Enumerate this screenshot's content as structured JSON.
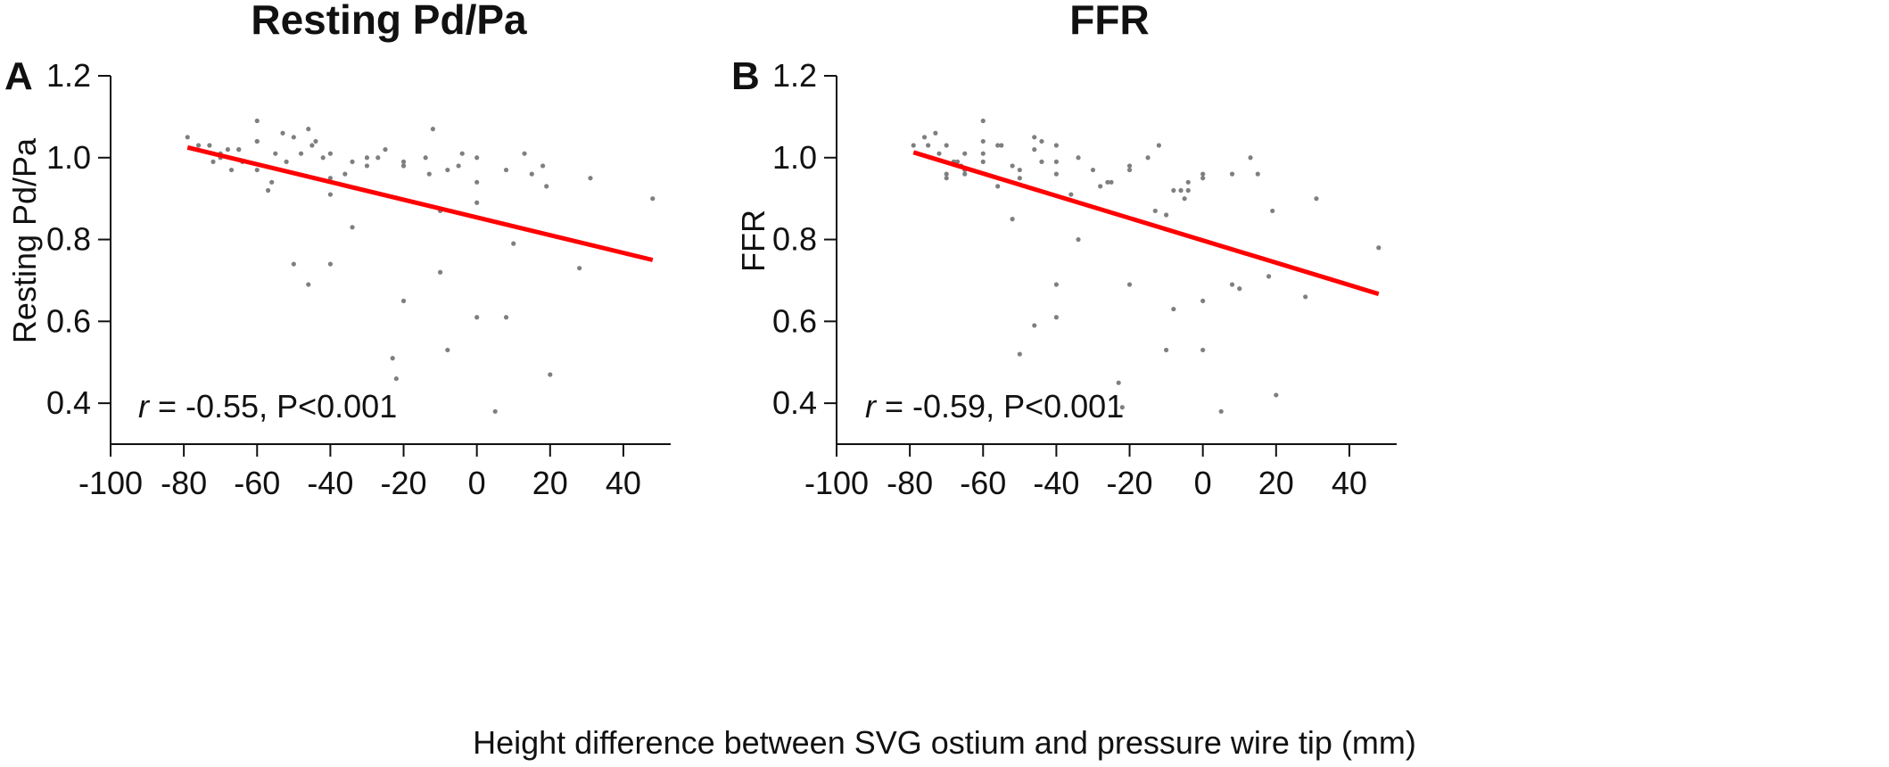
{
  "figure": {
    "shared_xlabel": "Height difference between SVG ostium and pressure wire tip (mm)"
  },
  "chart_data": [
    {
      "type": "scatter",
      "panel_label": "A",
      "title": "Resting Pd/Pa",
      "xlabel": "",
      "ylabel": "Resting Pd/Pa",
      "xlim": [
        -100,
        50
      ],
      "ylim": [
        0.3,
        1.2
      ],
      "xticks": [
        -100,
        -80,
        -60,
        -40,
        -20,
        0,
        20,
        40
      ],
      "xtick_labels": [
        "-100",
        "-80",
        "-60",
        "-40",
        "-20",
        "0",
        "20",
        "40"
      ],
      "yticks": [
        0.4,
        0.6,
        0.8,
        1.0,
        1.2
      ],
      "ytick_labels": [
        "0.4",
        "0.6",
        "0.8",
        "1.0",
        "1.2"
      ],
      "grid": false,
      "point_color": "#7f7f7f",
      "line_color": "#ff0000",
      "annotation": {
        "r_symbol": "r",
        "text": " = -0.55, P<0.001"
      },
      "regression": {
        "x": [
          -79,
          48
        ],
        "y": [
          1.025,
          0.75
        ]
      },
      "points": [
        [
          -79,
          1.05
        ],
        [
          -76,
          1.03
        ],
        [
          -73,
          1.03
        ],
        [
          -72,
          0.99
        ],
        [
          -70,
          1.01
        ],
        [
          -70,
          1.0
        ],
        [
          -68,
          1.02
        ],
        [
          -67,
          0.97
        ],
        [
          -65,
          1.02
        ],
        [
          -65,
          1.02
        ],
        [
          -64,
          0.99
        ],
        [
          -60,
          1.09
        ],
        [
          -60,
          1.04
        ],
        [
          -60,
          0.97
        ],
        [
          -60,
          1.04
        ],
        [
          -57,
          0.92
        ],
        [
          -56,
          0.94
        ],
        [
          -55,
          1.01
        ],
        [
          -53,
          1.06
        ],
        [
          -52,
          0.99
        ],
        [
          -50,
          1.05
        ],
        [
          -50,
          0.74
        ],
        [
          -48,
          1.01
        ],
        [
          -46,
          1.07
        ],
        [
          -46,
          0.69
        ],
        [
          -45,
          1.03
        ],
        [
          -44,
          1.04
        ],
        [
          -42,
          1.0
        ],
        [
          -40,
          1.01
        ],
        [
          -40,
          0.91
        ],
        [
          -40,
          0.95
        ],
        [
          -40,
          0.74
        ],
        [
          -36,
          0.96
        ],
        [
          -34,
          0.99
        ],
        [
          -34,
          0.83
        ],
        [
          -30,
          1.0
        ],
        [
          -30,
          0.98
        ],
        [
          -27,
          1.0
        ],
        [
          -25,
          1.02
        ],
        [
          -23,
          0.51
        ],
        [
          -22,
          0.46
        ],
        [
          -20,
          0.99
        ],
        [
          -20,
          0.98
        ],
        [
          -20,
          0.98
        ],
        [
          -20,
          0.65
        ],
        [
          -14,
          1.0
        ],
        [
          -13,
          0.96
        ],
        [
          -12,
          1.07
        ],
        [
          -10,
          0.87
        ],
        [
          -10,
          0.72
        ],
        [
          -8,
          0.97
        ],
        [
          -8,
          0.53
        ],
        [
          -5,
          0.98
        ],
        [
          -4,
          1.01
        ],
        [
          0,
          1.0
        ],
        [
          0,
          0.94
        ],
        [
          0,
          0.89
        ],
        [
          0,
          0.61
        ],
        [
          5,
          0.38
        ],
        [
          8,
          0.97
        ],
        [
          8,
          0.61
        ],
        [
          10,
          0.79
        ],
        [
          13,
          1.01
        ],
        [
          15,
          0.96
        ],
        [
          18,
          0.98
        ],
        [
          19,
          0.93
        ],
        [
          20,
          0.47
        ],
        [
          28,
          0.73
        ],
        [
          31,
          0.95
        ],
        [
          48,
          0.9
        ]
      ]
    },
    {
      "type": "scatter",
      "panel_label": "B",
      "title": "FFR",
      "xlabel": "",
      "ylabel": "FFR",
      "xlim": [
        -100,
        50
      ],
      "ylim": [
        0.3,
        1.2
      ],
      "xticks": [
        -100,
        -80,
        -60,
        -40,
        -20,
        0,
        20,
        40
      ],
      "xtick_labels": [
        "-100",
        "-80",
        "-60",
        "-40",
        "-20",
        "0",
        "20",
        "40"
      ],
      "yticks": [
        0.4,
        0.6,
        0.8,
        1.0,
        1.2
      ],
      "ytick_labels": [
        "0.4",
        "0.6",
        "0.8",
        "1.0",
        "1.2"
      ],
      "grid": false,
      "point_color": "#7f7f7f",
      "line_color": "#ff0000",
      "annotation": {
        "r_symbol": "r",
        "text": " = -0.59, P<0.001"
      },
      "regression": {
        "x": [
          -79,
          48
        ],
        "y": [
          1.013,
          0.667
        ]
      },
      "points": [
        [
          -79,
          1.03
        ],
        [
          -76,
          1.05
        ],
        [
          -75,
          1.03
        ],
        [
          -73,
          1.06
        ],
        [
          -72,
          1.01
        ],
        [
          -70,
          0.96
        ],
        [
          -70,
          0.95
        ],
        [
          -70,
          1.03
        ],
        [
          -68,
          0.99
        ],
        [
          -67,
          0.99
        ],
        [
          -66,
          0.98
        ],
        [
          -65,
          1.01
        ],
        [
          -65,
          0.97
        ],
        [
          -65,
          0.96
        ],
        [
          -60,
          1.09
        ],
        [
          -60,
          1.04
        ],
        [
          -60,
          1.01
        ],
        [
          -60,
          0.99
        ],
        [
          -56,
          1.03
        ],
        [
          -56,
          0.93
        ],
        [
          -55,
          1.03
        ],
        [
          -52,
          0.98
        ],
        [
          -52,
          0.85
        ],
        [
          -50,
          0.97
        ],
        [
          -50,
          0.95
        ],
        [
          -50,
          0.52
        ],
        [
          -46,
          1.05
        ],
        [
          -46,
          1.02
        ],
        [
          -46,
          0.59
        ],
        [
          -44,
          1.04
        ],
        [
          -44,
          0.99
        ],
        [
          -40,
          1.03
        ],
        [
          -40,
          0.96
        ],
        [
          -40,
          0.99
        ],
        [
          -40,
          0.69
        ],
        [
          -40,
          0.61
        ],
        [
          -36,
          0.91
        ],
        [
          -34,
          1.0
        ],
        [
          -34,
          0.8
        ],
        [
          -30,
          0.97
        ],
        [
          -28,
          0.93
        ],
        [
          -26,
          0.94
        ],
        [
          -25,
          0.94
        ],
        [
          -23,
          0.45
        ],
        [
          -22,
          0.39
        ],
        [
          -20,
          0.98
        ],
        [
          -20,
          0.97
        ],
        [
          -20,
          0.69
        ],
        [
          -15,
          1.0
        ],
        [
          -13,
          0.87
        ],
        [
          -12,
          1.03
        ],
        [
          -10,
          0.86
        ],
        [
          -10,
          0.53
        ],
        [
          -8,
          0.92
        ],
        [
          -8,
          0.63
        ],
        [
          -6,
          0.92
        ],
        [
          -5,
          0.9
        ],
        [
          -4,
          0.94
        ],
        [
          -4,
          0.92
        ],
        [
          0,
          0.96
        ],
        [
          0,
          0.95
        ],
        [
          0,
          0.65
        ],
        [
          0,
          0.53
        ],
        [
          5,
          0.38
        ],
        [
          8,
          0.96
        ],
        [
          8,
          0.69
        ],
        [
          10,
          0.68
        ],
        [
          13,
          1.0
        ],
        [
          15,
          0.96
        ],
        [
          18,
          0.71
        ],
        [
          19,
          0.87
        ],
        [
          20,
          0.42
        ],
        [
          28,
          0.66
        ],
        [
          31,
          0.9
        ],
        [
          48,
          0.78
        ]
      ]
    }
  ]
}
